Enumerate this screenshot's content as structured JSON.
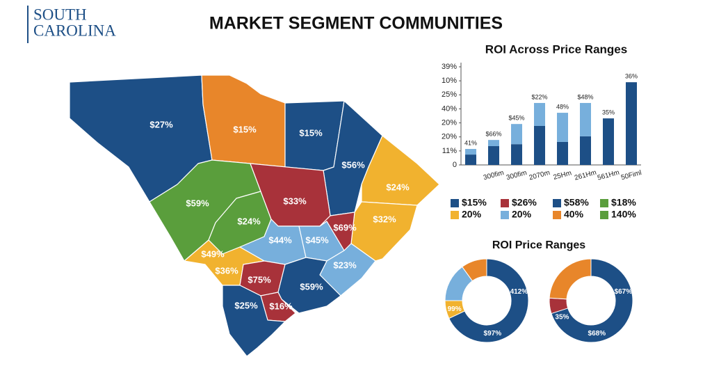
{
  "header": {
    "brand": [
      "SOUTH",
      "CAROLINA"
    ],
    "title": "MARKET SEGMENT COMMUNITIES"
  },
  "map": {
    "regions": [
      {
        "labels": [
          "$27%"
        ],
        "color": "#1d4f86"
      },
      {
        "labels": [
          "$15%"
        ],
        "color": "#e8862a"
      },
      {
        "labels": [
          "$15%"
        ],
        "color": "#1d4f86"
      },
      {
        "labels": [
          "$56%"
        ],
        "color": "#1d4f86"
      },
      {
        "labels": [
          "$24%"
        ],
        "color": "#f1b22f"
      },
      {
        "labels": [
          "$32%"
        ],
        "color": "#f1b22f"
      },
      {
        "labels": [
          "$59%"
        ],
        "color": "#5a9e3c"
      },
      {
        "labels": [
          "$24%"
        ],
        "color": "#5a9e3c"
      },
      {
        "labels": [
          "$33%"
        ],
        "color": "#a8323a"
      },
      {
        "labels": [
          "$44%"
        ],
        "color": "#77afdc"
      },
      {
        "labels": [
          "$45%"
        ],
        "color": "#77afdc"
      },
      {
        "labels": [
          "$69%"
        ],
        "color": "#a8323a"
      },
      {
        "labels": [
          "$23%"
        ],
        "color": "#77afdc"
      },
      {
        "labels": [
          "$49%",
          "$36%"
        ],
        "color": "#f1b22f"
      },
      {
        "labels": [
          "$75%"
        ],
        "color": "#a8323a"
      },
      {
        "labels": [
          "$59%"
        ],
        "color": "#1d4f86"
      },
      {
        "labels": [
          "$16%"
        ],
        "color": "#a8323a"
      },
      {
        "labels": [
          "$25%"
        ],
        "color": "#1d4f86"
      }
    ]
  },
  "chart_data": [
    {
      "type": "bar",
      "title": "ROI Across Price Ranges",
      "categories": [
        null,
        "300fim",
        "300fim",
        "2070m",
        "25Hm",
        "261Hm",
        "561Hm",
        "50Fiml"
      ],
      "series": [
        {
          "color": "#1d4f86",
          "values": [
            3.7,
            6.7,
            7.4,
            13.9,
            8.2,
            10.2,
            16.6,
            29.5
          ]
        },
        {
          "color": "#77afdc",
          "values": [
            2.0,
            2.2,
            7.2,
            8.2,
            10.4,
            11.9,
            null,
            null
          ]
        }
      ],
      "annotations": [
        "41%",
        "$66%",
        "$45%",
        "$22%",
        "48%",
        "$48%",
        "35%",
        "36%"
      ],
      "ylim": [
        0,
        35
      ],
      "yticks": [
        0,
        {
          "value": 5,
          "label": "11%"
        },
        {
          "value": 10,
          "label": "20%"
        },
        {
          "value": 15,
          "label": "20%"
        },
        {
          "value": 20,
          "label": "40%"
        },
        {
          "value": 25,
          "label": "25%"
        },
        {
          "value": 30,
          "label": "10%"
        },
        {
          "value": 35,
          "label": "39%"
        }
      ],
      "grid": false
    },
    {
      "type": "donut",
      "title": "ROI Price Ranges",
      "values": [
        68,
        7,
        15,
        10
      ],
      "colors": [
        "#1d4f86",
        "#f1b22f",
        "#77afdc",
        "#e8862a"
      ],
      "annotations": [
        "412%",
        "$97%",
        "99%"
      ]
    },
    {
      "type": "donut",
      "values": [
        70,
        6,
        24
      ],
      "colors": [
        "#1d4f86",
        "#a8323a",
        "#e8862a"
      ],
      "annotations": [
        "$67%",
        "$68%",
        "35%"
      ]
    }
  ],
  "legend": {
    "items": [
      {
        "label": "$15%",
        "color": "#1d4f86"
      },
      {
        "label": "$26%",
        "color": "#a8323a"
      },
      {
        "label": "$58%",
        "color": "#1d4f86"
      },
      {
        "label": "$18%",
        "color": "#5a9e3c"
      },
      {
        "label": "20%",
        "color": "#f1b22f"
      },
      {
        "label": "20%",
        "color": "#77afdc"
      },
      {
        "label": "40%",
        "color": "#e8862a"
      },
      {
        "label": "140%",
        "color": "#5a9e3c"
      }
    ]
  }
}
